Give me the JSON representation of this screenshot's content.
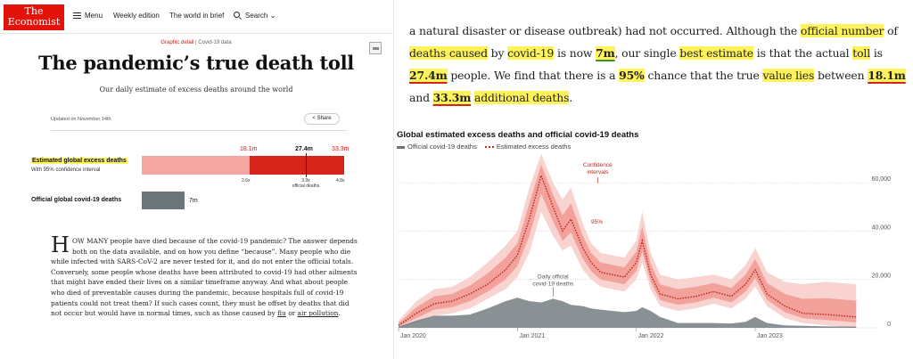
{
  "nav": {
    "logo_line1": "The",
    "logo_line2": "Economist",
    "menu": "Menu",
    "weekly": "Weekly edition",
    "brief": "The world in brief",
    "search": "Search ⌄"
  },
  "article_header": {
    "kicker_section": "Graphic detail",
    "kicker_sep": " | ",
    "kicker_topic": "Covid-19 data",
    "title": "The pandemic’s true death toll",
    "subtitle": "Our daily estimate of excess deaths around the world",
    "updated": "Updated on November 14th",
    "share": "Share"
  },
  "summary": {
    "excess_label": "Estimated global excess deaths",
    "ci_label": "With 95% confidence interval",
    "official_label": "Official global covid-19 deaths",
    "low": "18.1m",
    "mid": "27.4m",
    "high": "33.3m",
    "official_value": "7m",
    "ratio_low": "2.6x",
    "ratio_mid": "3.9x",
    "ratio_mid_sub": "official deaths",
    "ratio_high": "4.8x"
  },
  "body": {
    "dropcap": "H",
    "smallcaps": "OW MANY",
    "p1": " people have died because of the covid-19 pandemic? The answer depends both on the data available, and on how you define “because”. Many people who die while infected with SARS-CoV-2 are never tested for it, and do not enter the official totals. Conversely, some people whose deaths have been attributed to covid-19 had other ailments that might have ended their lives on a similar timeframe anyway. And what about people who died of preventable causes during the pandemic, because hospitals full of covid-19 patients could not treat them? If such cases count, they must be offset by deaths that did not occur but would have in normal times, such as those caused by ",
    "link1": "flu",
    "or": " or ",
    "link2": "air pollution",
    "end": "."
  },
  "quote": {
    "t1": "a natural disaster or disease outbreak) had not occurred. Although the ",
    "h1": "official number",
    "t2": " of ",
    "h2": "deaths caused",
    "t3": " by ",
    "h3": "covid-19",
    "t4": " is now ",
    "h4": "7m",
    "t5": ", our single ",
    "h5": "best estimate",
    "t6": " is that the actual ",
    "h6": "toll",
    "t7": " is ",
    "h7": "27.4m",
    "t8": " people. We find that there is a ",
    "h8": "95%",
    "t9": " chance that the true ",
    "h9": "value lies",
    "t10": " between ",
    "h10": "18.1m",
    "t11": " and ",
    "h11": "33.3m",
    "t12": " ",
    "h12": "additional deaths",
    "t13": "."
  },
  "chart_data": {
    "type": "area",
    "title": "Global estimated excess deaths and official covid-19 deaths",
    "legend": [
      "Official covid-19 deaths",
      "Estimated excess deaths"
    ],
    "legend_placement": "top-left",
    "x_ticks": [
      "Jan 2020",
      "Jan 2021",
      "Jan 2022",
      "Jan 2023"
    ],
    "y_ticks": [
      0,
      20000,
      40000,
      60000
    ],
    "y_tick_labels": [
      "0",
      "20,000",
      "40,000",
      "60,000"
    ],
    "ylim": [
      0,
      70000
    ],
    "grid": "horizontal dotted",
    "annotations": {
      "ci": [
        "Confidence",
        "intervals"
      ],
      "ci95": "95%",
      "official": [
        "Daily official",
        "covid-19 deaths"
      ]
    },
    "colors": {
      "official": "#6c757a",
      "excess": "#c0271d",
      "ci_outer": "#f9d3cf",
      "ci_inner": "#f2a29b"
    },
    "x": [
      2020.0,
      2020.15,
      2020.3,
      2020.45,
      2020.6,
      2020.75,
      2020.9,
      2021.0,
      2021.1,
      2021.2,
      2021.3,
      2021.38,
      2021.45,
      2021.55,
      2021.62,
      2021.7,
      2021.8,
      2021.9,
      2022.0,
      2022.05,
      2022.12,
      2022.2,
      2022.35,
      2022.5,
      2022.65,
      2022.8,
      2022.92,
      2023.0,
      2023.1,
      2023.25,
      2023.4,
      2023.6,
      2023.85
    ],
    "series": [
      {
        "name": "Estimated excess deaths",
        "values": [
          1000,
          6000,
          10000,
          11000,
          14000,
          18000,
          24000,
          30000,
          45000,
          63000,
          50000,
          40000,
          45000,
          33000,
          27000,
          23000,
          22000,
          21000,
          27000,
          36000,
          22000,
          14000,
          12000,
          13000,
          15000,
          13000,
          18000,
          24000,
          14000,
          9000,
          6000,
          5500,
          4500
        ]
      },
      {
        "name": "Official covid-19 deaths",
        "values": [
          500,
          3000,
          5000,
          5000,
          5500,
          8000,
          11000,
          12500,
          11000,
          10500,
          12000,
          11000,
          9500,
          9000,
          8000,
          7500,
          7000,
          6500,
          7000,
          8500,
          7000,
          4500,
          2000,
          2000,
          2000,
          1800,
          2500,
          4500,
          2000,
          1000,
          800,
          600,
          500
        ]
      }
    ],
    "ci_low": [
      0,
      2000,
      5000,
      6000,
      8000,
      12000,
      16000,
      21000,
      31000,
      48000,
      38000,
      32000,
      34000,
      24000,
      20000,
      17000,
      16000,
      15000,
      20000,
      27000,
      16000,
      9000,
      7000,
      8000,
      10000,
      8000,
      12000,
      17000,
      9000,
      4000,
      2000,
      1000,
      0
    ],
    "ci_high": [
      3000,
      11000,
      16000,
      17000,
      21000,
      27000,
      34000,
      40000,
      58000,
      72000,
      60000,
      53000,
      58000,
      43000,
      35000,
      31000,
      30000,
      29000,
      36000,
      48000,
      31000,
      22000,
      20000,
      21000,
      22000,
      20000,
      26000,
      33000,
      23000,
      19000,
      18000,
      19000,
      18000
    ]
  }
}
